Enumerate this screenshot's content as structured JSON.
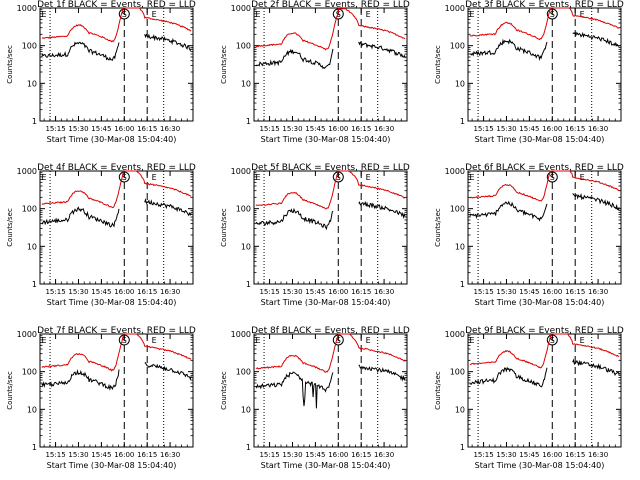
{
  "chart_data": [
    {
      "type": "line",
      "title": "Det 1f BLACK = Events, RED = LLD",
      "xlabel": "Start Time (30-Mar-08 15:04:40)",
      "ylabel": "Counts/sec",
      "y_scale": "log",
      "ylim": [
        1,
        1000
      ],
      "xlim": [
        15.08,
        16.75
      ],
      "x_tick_labels": [
        "15:15",
        "15:30",
        "15:45",
        "16:00",
        "16:15",
        "16:30"
      ],
      "y_tick_labels": [
        "1",
        "10",
        "100",
        "1000"
      ],
      "markers": {
        "s_label": "S",
        "e_label": "E"
      },
      "lld_color": "#dd0000",
      "events_color": "#000000"
    },
    {
      "type": "line",
      "title": "Det 2f BLACK = Events, RED = LLD",
      "xlabel": "Start Time (30-Mar-08 15:04:40)",
      "ylabel": "Counts/sec",
      "y_scale": "log",
      "ylim": [
        1,
        1000
      ],
      "xlim": [
        15.08,
        16.75
      ],
      "x_tick_labels": [
        "15:15",
        "15:30",
        "15:45",
        "16:00",
        "16:15",
        "16:30"
      ],
      "y_tick_labels": [
        "1",
        "10",
        "100",
        "1000"
      ],
      "markers": {
        "s_label": "S",
        "e_label": "E"
      },
      "lld_color": "#dd0000",
      "events_color": "#000000"
    },
    {
      "type": "line",
      "title": "Det 3f BLACK = Events, RED = LLD",
      "xlabel": "Start Time (30-Mar-08 15:04:40)",
      "ylabel": "Counts/sec",
      "y_scale": "log",
      "ylim": [
        1,
        1000
      ],
      "xlim": [
        15.08,
        16.75
      ],
      "x_tick_labels": [
        "15:15",
        "15:30",
        "15:45",
        "16:00",
        "16:15",
        "16:30"
      ],
      "y_tick_labels": [
        "1",
        "10",
        "100",
        "1000"
      ],
      "markers": {
        "s_label": "S",
        "e_label": "E"
      },
      "lld_color": "#dd0000",
      "events_color": "#000000"
    },
    {
      "type": "line",
      "title": "Det 4f BLACK = Events, RED = LLD",
      "xlabel": "Start Time (30-Mar-08 15:04:40)",
      "ylabel": "Counts/sec",
      "y_scale": "log",
      "ylim": [
        1,
        1000
      ],
      "xlim": [
        15.08,
        16.75
      ],
      "x_tick_labels": [
        "15:15",
        "15:30",
        "15:45",
        "16:00",
        "16:15",
        "16:30"
      ],
      "y_tick_labels": [
        "1",
        "10",
        "100",
        "1000"
      ],
      "markers": {
        "s_label": "S",
        "e_label": "E"
      },
      "lld_color": "#dd0000",
      "events_color": "#000000"
    },
    {
      "type": "line",
      "title": "Det 5f BLACK = Events, RED = LLD",
      "xlabel": "Start Time (30-Mar-08 15:04:40)",
      "ylabel": "Counts/sec",
      "y_scale": "log",
      "ylim": [
        1,
        1000
      ],
      "xlim": [
        15.08,
        16.75
      ],
      "x_tick_labels": [
        "15:15",
        "15:30",
        "15:45",
        "16:00",
        "16:15",
        "16:30"
      ],
      "y_tick_labels": [
        "1",
        "10",
        "100",
        "1000"
      ],
      "markers": {
        "s_label": "S",
        "e_label": "E"
      },
      "lld_color": "#dd0000",
      "events_color": "#000000"
    },
    {
      "type": "line",
      "title": "Det 6f BLACK = Events, RED = LLD",
      "xlabel": "Start Time (30-Mar-08 15:04:40)",
      "ylabel": "Counts/sec",
      "y_scale": "log",
      "ylim": [
        1,
        1000
      ],
      "xlim": [
        15.08,
        16.75
      ],
      "x_tick_labels": [
        "15:15",
        "15:30",
        "15:45",
        "16:00",
        "16:15",
        "16:30"
      ],
      "y_tick_labels": [
        "1",
        "10",
        "100",
        "1000"
      ],
      "markers": {
        "s_label": "S",
        "e_label": "E"
      },
      "lld_color": "#dd0000",
      "events_color": "#000000"
    },
    {
      "type": "line",
      "title": "Det 7f BLACK = Events, RED = LLD",
      "xlabel": "Start Time (30-Mar-08 15:04:40)",
      "ylabel": "Counts/sec",
      "y_scale": "log",
      "ylim": [
        1,
        1000
      ],
      "xlim": [
        15.08,
        16.75
      ],
      "x_tick_labels": [
        "15:15",
        "15:30",
        "15:45",
        "16:00",
        "16:15",
        "16:30"
      ],
      "y_tick_labels": [
        "1",
        "10",
        "100",
        "1000"
      ],
      "markers": {
        "s_label": "S",
        "e_label": "E"
      },
      "lld_color": "#dd0000",
      "events_color": "#000000"
    },
    {
      "type": "line",
      "title": "Det 8f BLACK = Events, RED = LLD",
      "xlabel": "Start Time (30-Mar-08 15:04:40)",
      "ylabel": "Counts/sec",
      "y_scale": "log",
      "ylim": [
        1,
        1000
      ],
      "xlim": [
        15.08,
        16.75
      ],
      "x_tick_labels": [
        "15:15",
        "15:30",
        "15:45",
        "16:00",
        "16:15",
        "16:30"
      ],
      "y_tick_labels": [
        "1",
        "10",
        "100",
        "1000"
      ],
      "markers": {
        "s_label": "S",
        "e_label": "E"
      },
      "lld_color": "#dd0000",
      "events_color": "#000000"
    },
    {
      "type": "line",
      "title": "Det 9f BLACK = Events, RED = LLD",
      "xlabel": "Start Time (30-Mar-08 15:04:40)",
      "ylabel": "Counts/sec",
      "y_scale": "log",
      "ylim": [
        1,
        1000
      ],
      "xlim": [
        15.08,
        16.75
      ],
      "x_tick_labels": [
        "15:15",
        "15:30",
        "15:45",
        "16:00",
        "16:15",
        "16:30"
      ],
      "y_tick_labels": [
        "1",
        "10",
        "100",
        "1000"
      ],
      "markers": {
        "s_label": "S",
        "e_label": "E"
      },
      "lld_color": "#dd0000",
      "events_color": "#000000"
    }
  ]
}
